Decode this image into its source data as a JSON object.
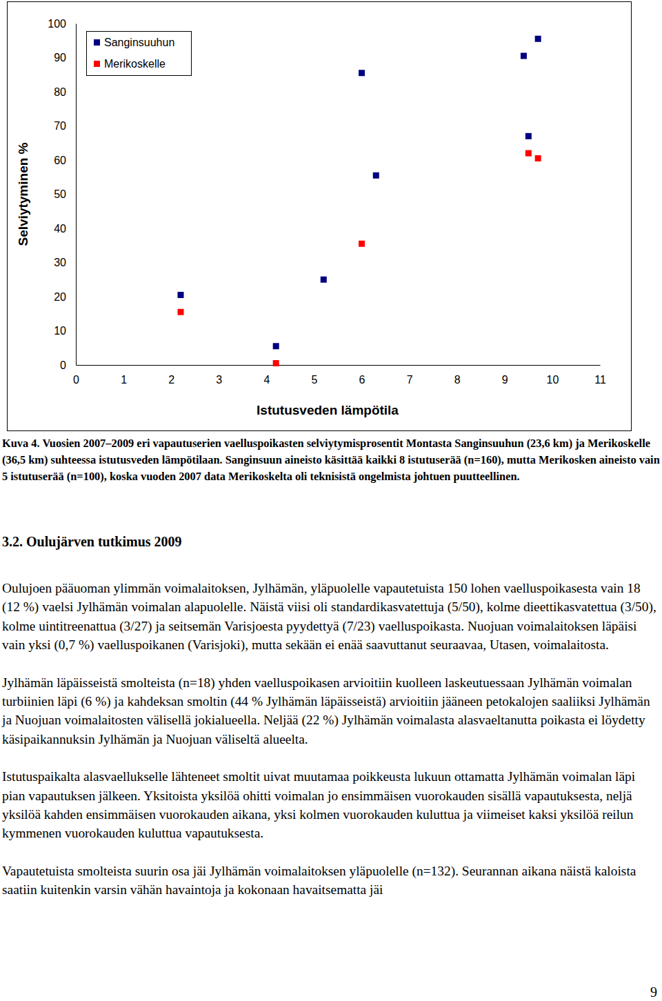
{
  "chart_data": {
    "type": "scatter",
    "x_label": "Istutusveden lämpötila",
    "y_label": "Selviytyminen %",
    "xlim": [
      0,
      11
    ],
    "xticks": [
      0,
      1,
      2,
      3,
      4,
      5,
      6,
      7,
      8,
      9,
      10,
      11
    ],
    "ylim": [
      0,
      100
    ],
    "yticks": [
      0,
      10,
      20,
      30,
      40,
      50,
      60,
      70,
      80,
      90,
      100
    ],
    "legend": "upper left",
    "marker": "square",
    "series": [
      {
        "name": "Sanginsuuhun",
        "color": "#000080",
        "x": [
          2.2,
          4.2,
          5.2,
          6.0,
          6.3,
          9.4,
          9.5,
          9.7
        ],
        "values": [
          20.5,
          5.5,
          25,
          85.5,
          55.5,
          90.5,
          67,
          95.5
        ]
      },
      {
        "name": "Merikoskelle",
        "color": "#ff0000",
        "x": [
          2.2,
          4.2,
          6.0,
          9.5,
          9.7
        ],
        "values": [
          15.5,
          0.5,
          35.5,
          62,
          60.5
        ]
      }
    ]
  },
  "caption": "Kuva 4. Vuosien 2007–2009 eri vapautuserien vaelluspoikasten selviytymisprosentit Montasta Sanginsuuhun (23,6 km) ja Merikoskelle (36,5 km) suhteessa istutusveden lämpötilaan. Sanginsuun aineisto käsittää kaikki 8 istutuserää (n=160), mutta Merikosken aineisto vain 5 istutuserää (n=100), koska vuoden 2007 data Merikoskelta oli teknisistä ongelmista johtuen puutteellinen.",
  "section_heading": "3.2. Oulujärven tutkimus 2009",
  "paragraphs": [
    "Oulujoen pääuoman ylimmän voimalaitoksen, Jylhämän, yläpuolelle vapautetuista 150 lohen vaelluspoikasesta vain 18 (12 %) vaelsi Jylhämän voimalan alapuolelle. Näistä viisi oli standardikasvatettuja (5/50), kolme dieettikasvatettua (3/50), kolme uintitreenattua (3/27) ja seitsemän Varisjoesta pyydettyä (7/23) vaelluspoikasta. Nuojuan voimalaitoksen läpäisi vain yksi (0,7 %) vaelluspoikanen (Varisjoki), mutta sekään ei enää saavuttanut seuraavaa, Utasen, voimalaitosta.",
    "Jylhämän läpäisseistä smolteista (n=18) yhden vaelluspoikasen arvioitiin kuolleen laskeutuessaan Jylhämän voimalan turbiinien läpi (6 %) ja kahdeksan smoltin (44 % Jylhämän läpäisseistä) arvioitiin jääneen petokalojen saaliiksi Jylhämän ja Nuojuan voimalaitosten välisellä jokialueella. Neljää (22 %) Jylhämän voimalasta alasvaeltanutta poikasta ei löydetty käsipaikannuksin Jylhämän ja Nuojuan väliseltä alueelta.",
    "Istutuspaikalta alasvaellukselle lähteneet smoltit uivat muutamaa poikkeusta lukuun ottamatta Jylhämän voimalan läpi pian vapautuksen jälkeen. Yksitoista yksilöä ohitti voimalan jo ensimmäisen vuorokauden sisällä vapautuksesta, neljä yksilöä kahden ensimmäisen vuorokauden aikana, yksi kolmen vuorokauden kuluttua ja viimeiset kaksi yksilöä reilun kymmenen vuorokauden kuluttua vapautuksesta.",
    "Vapautetuista smolteista suurin osa jäi Jylhämän voimalaitoksen yläpuolelle (n=132). Seurannan aikana näistä kaloista saatiin kuitenkin varsin vähän havaintoja ja kokonaan havaitsematta jäi"
  ],
  "page_number": "9"
}
